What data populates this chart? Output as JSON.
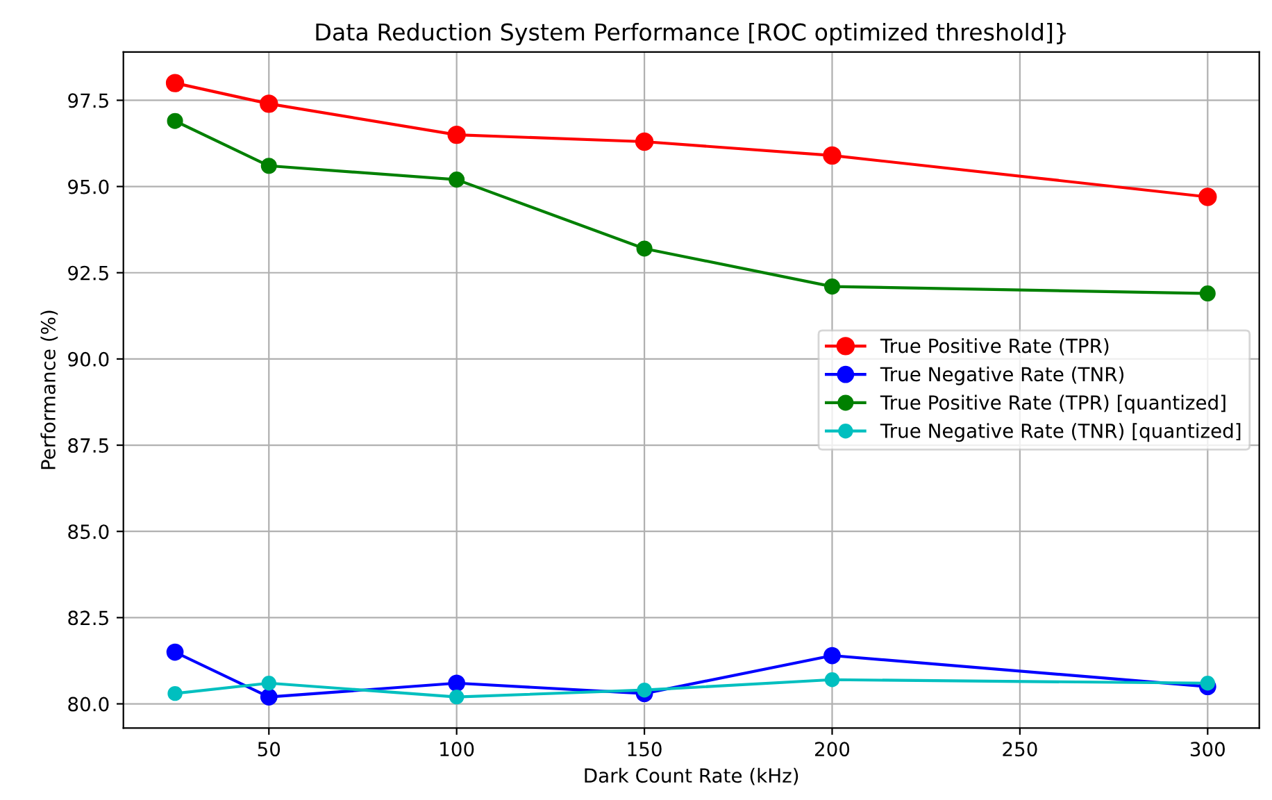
{
  "chart_data": {
    "type": "line",
    "title": "Data Reduction System Performance [ROC optimized threshold]}",
    "xlabel": "Dark Count Rate (kHz)",
    "ylabel": "Performance (%)",
    "x": [
      25,
      50,
      100,
      150,
      200,
      300
    ],
    "series": [
      {
        "name": "True Positive Rate (TPR)",
        "color": "#ff0000",
        "values": [
          98.0,
          97.4,
          96.5,
          96.3,
          95.9,
          94.7
        ]
      },
      {
        "name": "True Negative Rate (TNR)",
        "color": "#0000ff",
        "values": [
          81.5,
          80.2,
          80.6,
          80.3,
          81.4,
          80.5
        ]
      },
      {
        "name": "True Positive Rate (TPR) [quantized]",
        "color": "#008000",
        "values": [
          96.9,
          95.6,
          95.2,
          93.2,
          92.1,
          91.9
        ]
      },
      {
        "name": "True Negative Rate (TNR) [quantized]",
        "color": "#00bfbf",
        "values": [
          80.3,
          80.6,
          80.2,
          80.4,
          80.7,
          80.6
        ]
      }
    ],
    "xlim": [
      11.25,
      313.75
    ],
    "ylim": [
      79.3,
      98.9
    ],
    "xticks": [
      50,
      100,
      150,
      200,
      250,
      300
    ],
    "yticks": [
      {
        "value": 80,
        "label": "80.0"
      },
      {
        "value": 82.5,
        "label": "82.5"
      },
      {
        "value": 85,
        "label": "85.0"
      },
      {
        "value": 87.5,
        "label": "87.5"
      },
      {
        "value": 90,
        "label": "90.0"
      },
      {
        "value": 92.5,
        "label": "92.5"
      },
      {
        "value": 95,
        "label": "95.0"
      },
      {
        "value": 97.5,
        "label": "97.5"
      }
    ],
    "grid": true,
    "legend": "right",
    "marker": "circle",
    "line_style": "solid"
  }
}
